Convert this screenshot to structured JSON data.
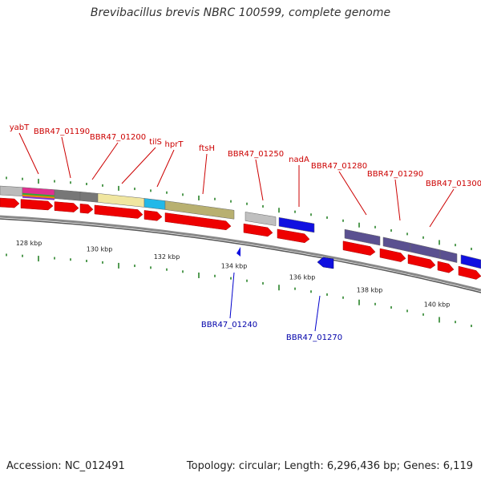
{
  "title": "Brevibacillus brevis NBRC 100599, complete genome",
  "footer": {
    "accession": "Accession: NC_012491",
    "summary": "Topology: circular; Length: 6,296,436 bp; Genes: 6,119"
  },
  "colors": {
    "forward_label": "#cc0000",
    "reverse_label": "#0000aa",
    "cds_arrow": "#ee0000",
    "backbone": "#888888",
    "ticks": "#1a7a1a"
  },
  "scale_labels": [
    "128 kbp",
    "130 kbp",
    "132 kbp",
    "134 kbp",
    "136 kbp",
    "138 kbp",
    "140 kbp"
  ],
  "forward_gene_labels": [
    "yabT",
    "BBR47_01190",
    "BBR47_01200",
    "tilS",
    "hprT",
    "ftsH",
    "BBR47_01250",
    "nadA",
    "BBR47_01280",
    "BBR47_01290",
    "BBR47_01300"
  ],
  "reverse_gene_labels": [
    "BBR47_01240",
    "BBR47_01270"
  ],
  "gene_block_colors": [
    "#bbbbbb",
    "#e03090",
    "#777777",
    "#f0e6a0",
    "#22b8e8",
    "#b8b070",
    "#c0c0c0",
    "#1010e0",
    "#5a5090",
    "#5a5090",
    "#5a5090",
    "#5a5090",
    "#1010e0"
  ]
}
